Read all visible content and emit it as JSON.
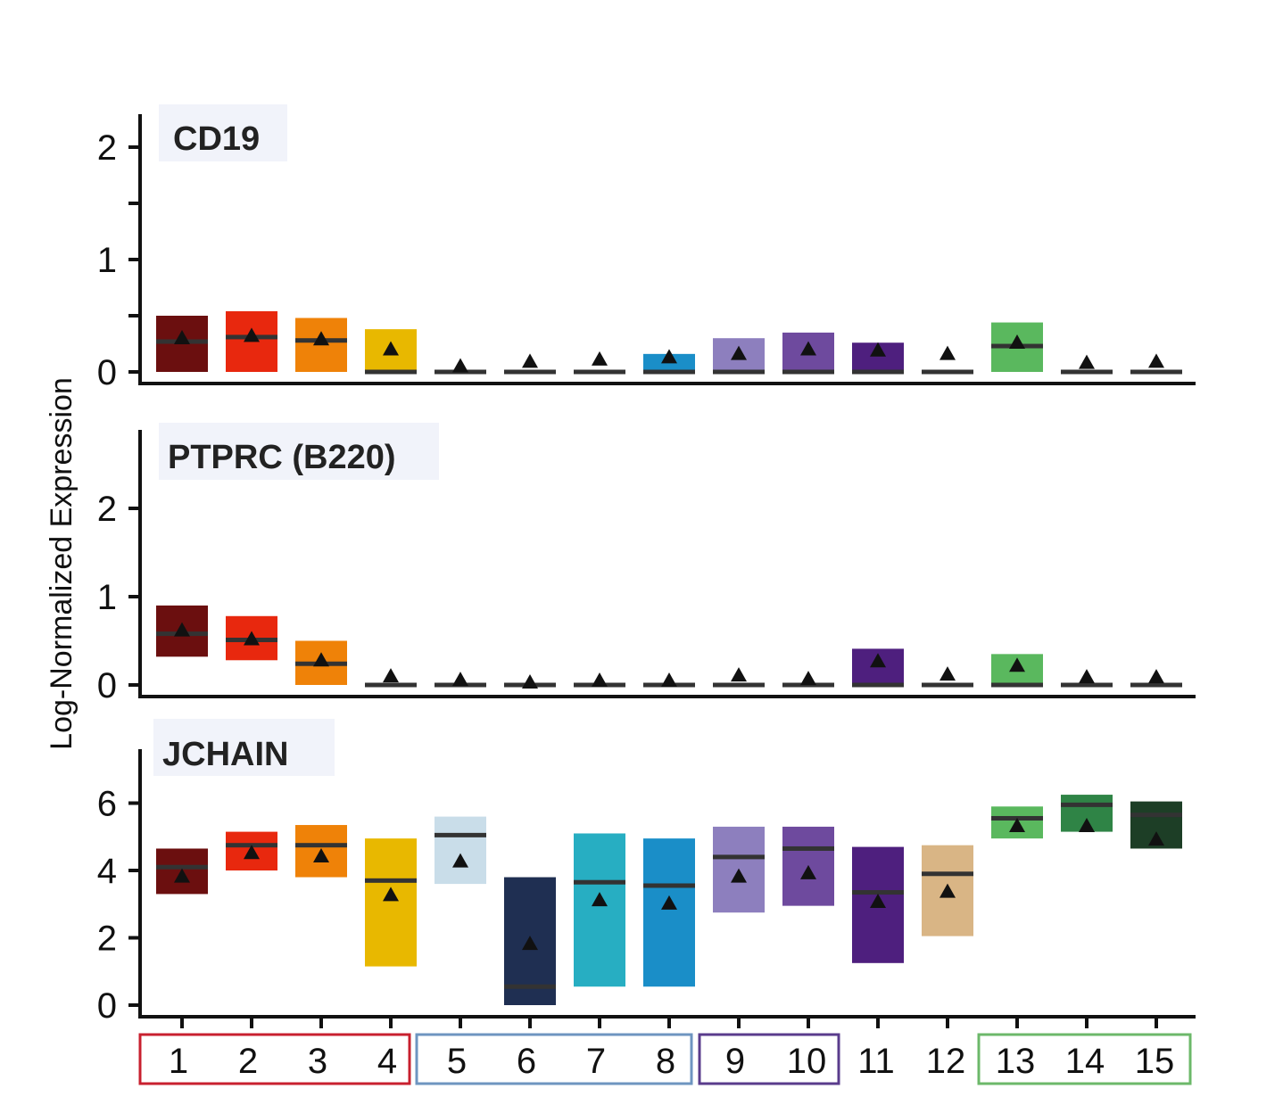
{
  "chart_data": {
    "type": "box",
    "ylabel": "Log-Normalized Expression",
    "categories": [
      "1",
      "2",
      "3",
      "4",
      "5",
      "6",
      "7",
      "8",
      "9",
      "10",
      "11",
      "12",
      "13",
      "14",
      "15"
    ],
    "colors": [
      "#6b0f0f",
      "#e8280e",
      "#ef8208",
      "#e8b800",
      "#c9dde9",
      "#1f2f52",
      "#27aec2",
      "#1a8ec8",
      "#8d7fbe",
      "#6e4a9e",
      "#4e1f7e",
      "#d9b585",
      "#5ab85e",
      "#2f8446",
      "#1d3e26"
    ],
    "category_groups": [
      {
        "members": [
          "1",
          "2",
          "3",
          "4"
        ],
        "color": "#c8202f"
      },
      {
        "members": [
          "5",
          "6",
          "7",
          "8"
        ],
        "color": "#6e95c0"
      },
      {
        "members": [
          "9",
          "10"
        ],
        "color": "#5a3c8c"
      },
      {
        "members": [
          "11",
          "12"
        ],
        "color": ""
      },
      {
        "members": [
          "13",
          "14",
          "15"
        ],
        "color": "#6cb86a"
      }
    ],
    "panels": [
      {
        "gene": "CD19",
        "yticks": [
          "0",
          "1",
          "2"
        ],
        "ylim": [
          0,
          2.2
        ],
        "q1": [
          0,
          0,
          0,
          0,
          0,
          0,
          0,
          0,
          0,
          0,
          0,
          0,
          0,
          0,
          0
        ],
        "q3": [
          0.5,
          0.54,
          0.48,
          0.38,
          0,
          0,
          0,
          0.16,
          0.3,
          0.35,
          0.26,
          0,
          0.44,
          0,
          0
        ],
        "median": [
          0.27,
          0.31,
          0.28,
          0,
          0,
          0,
          0,
          0,
          0,
          0,
          0,
          0,
          0.23,
          0,
          0
        ],
        "mean": [
          0.31,
          0.33,
          0.3,
          0.21,
          0.06,
          0.1,
          0.12,
          0.14,
          0.17,
          0.21,
          0.2,
          0.17,
          0.27,
          0.09,
          0.1
        ]
      },
      {
        "gene": "PTPRC (B220)",
        "yticks": [
          "0",
          "1",
          "2"
        ],
        "ylim": [
          0,
          2.2
        ],
        "q1": [
          0.32,
          0.28,
          0,
          0,
          0,
          0,
          0,
          0,
          0,
          0,
          0,
          0,
          0,
          0,
          0
        ],
        "q3": [
          0.9,
          0.78,
          0.5,
          0,
          0,
          0,
          0,
          0,
          0,
          0,
          0.41,
          0,
          0.35,
          0,
          0
        ],
        "median": [
          0.58,
          0.51,
          0.24,
          0,
          0,
          0,
          0,
          0,
          0,
          0,
          0,
          0,
          0,
          0,
          0
        ],
        "mean": [
          0.63,
          0.53,
          0.29,
          0.11,
          0.07,
          0.04,
          0.06,
          0.06,
          0.12,
          0.08,
          0.28,
          0.13,
          0.23,
          0.1,
          0.1
        ]
      },
      {
        "gene": "JCHAIN",
        "yticks": [
          "0",
          "2",
          "4",
          "6"
        ],
        "ylim": [
          0,
          7
        ],
        "q1": [
          3.3,
          4.0,
          3.8,
          1.15,
          3.6,
          0,
          0.55,
          0.55,
          2.75,
          2.95,
          1.25,
          2.05,
          4.95,
          5.15,
          4.65
        ],
        "q3": [
          4.65,
          5.15,
          5.35,
          4.95,
          5.6,
          3.8,
          5.1,
          4.95,
          5.3,
          5.3,
          4.7,
          4.75,
          5.9,
          6.25,
          6.05
        ],
        "median": [
          4.1,
          4.75,
          4.75,
          3.7,
          5.05,
          0.55,
          3.65,
          3.55,
          4.4,
          4.65,
          3.35,
          3.9,
          5.55,
          5.95,
          5.65
        ],
        "mean": [
          3.85,
          4.55,
          4.45,
          3.3,
          4.3,
          1.85,
          3.15,
          3.05,
          3.85,
          3.95,
          3.1,
          3.4,
          5.35,
          5.35,
          4.95
        ]
      }
    ]
  }
}
